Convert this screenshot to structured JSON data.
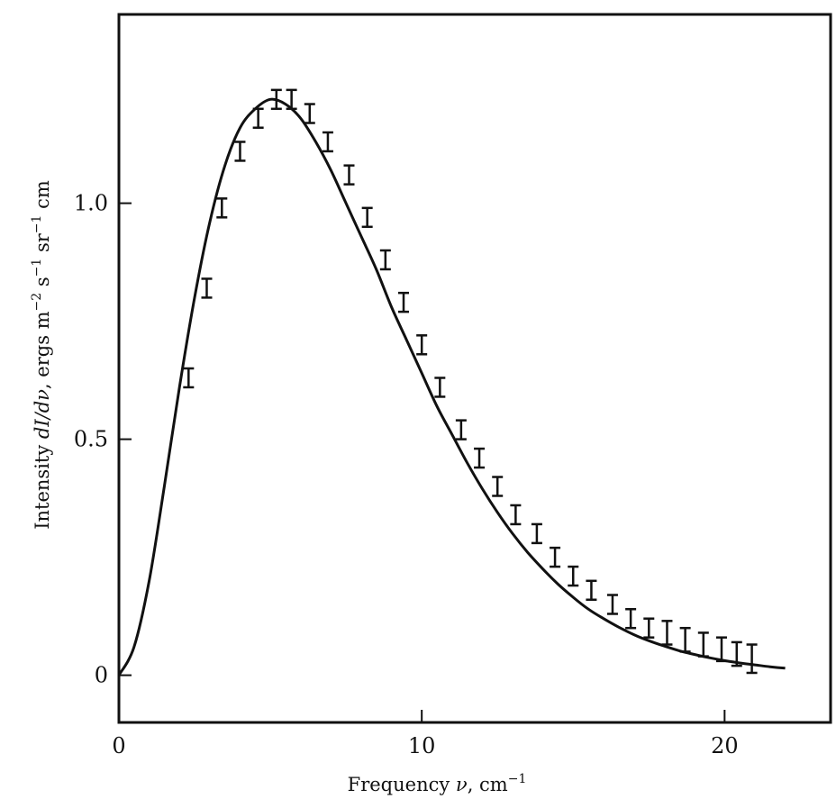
{
  "chart_data": {
    "type": "scatter",
    "xlabel": {
      "prefix": "Frequency ",
      "symbol": "ν",
      "suffix": ", cm",
      "exponent": "−1"
    },
    "ylabel": {
      "prefix": "Intensity ",
      "expr": "dI/dν",
      "middle": ", ergs m",
      "exp1": "−2",
      "s": " s",
      "exp2": "−1",
      "sr": " sr",
      "exp3": "−1",
      "tail": " cm"
    },
    "xlim": [
      0,
      23.5
    ],
    "ylim": [
      -0.1,
      1.4
    ],
    "xticks": [
      0,
      10,
      20
    ],
    "xtick_labels": [
      "0",
      "10",
      "20"
    ],
    "yticks": [
      0,
      0.5,
      1.0
    ],
    "ytick_labels": [
      "0",
      "0.5",
      "1.0"
    ],
    "grid": false,
    "series": [
      {
        "kind": "curve",
        "x": [
          0,
          0.5,
          1,
          1.5,
          2,
          2.5,
          3,
          3.5,
          4,
          4.5,
          5,
          5.5,
          6,
          6.5,
          7,
          7.5,
          8,
          8.5,
          9,
          9.5,
          10,
          10.5,
          11,
          11.5,
          12,
          12.5,
          13,
          13.5,
          14,
          14.5,
          15,
          15.5,
          16,
          16.5,
          17,
          17.5,
          18,
          18.5,
          19,
          19.5,
          20,
          20.5,
          21,
          21.5,
          22
        ],
        "y": [
          0,
          0.06,
          0.2,
          0.4,
          0.61,
          0.8,
          0.96,
          1.08,
          1.16,
          1.2,
          1.22,
          1.21,
          1.18,
          1.13,
          1.07,
          1.0,
          0.93,
          0.86,
          0.78,
          0.71,
          0.64,
          0.57,
          0.51,
          0.45,
          0.395,
          0.345,
          0.3,
          0.26,
          0.225,
          0.193,
          0.165,
          0.14,
          0.12,
          0.102,
          0.086,
          0.073,
          0.062,
          0.052,
          0.044,
          0.037,
          0.031,
          0.026,
          0.022,
          0.018,
          0.015
        ]
      },
      {
        "kind": "error_bars",
        "x": [
          2.3,
          2.9,
          3.4,
          4.0,
          4.6,
          5.2,
          5.7,
          6.3,
          6.9,
          7.6,
          8.2,
          8.8,
          9.4,
          10.0,
          10.6,
          11.3,
          11.9,
          12.5,
          13.1,
          13.8,
          14.4,
          15.0,
          15.6,
          16.3,
          16.9,
          17.5,
          18.1,
          18.7,
          19.3,
          19.9,
          20.4,
          20.9
        ],
        "y": [
          0.63,
          0.82,
          0.99,
          1.11,
          1.18,
          1.22,
          1.22,
          1.19,
          1.13,
          1.06,
          0.97,
          0.88,
          0.79,
          0.7,
          0.61,
          0.52,
          0.46,
          0.4,
          0.34,
          0.3,
          0.25,
          0.21,
          0.18,
          0.15,
          0.12,
          0.1,
          0.09,
          0.075,
          0.065,
          0.055,
          0.045,
          0.035
        ],
        "err": [
          0.02,
          0.02,
          0.02,
          0.02,
          0.02,
          0.02,
          0.02,
          0.02,
          0.02,
          0.02,
          0.02,
          0.02,
          0.02,
          0.02,
          0.02,
          0.02,
          0.02,
          0.02,
          0.02,
          0.02,
          0.02,
          0.02,
          0.02,
          0.02,
          0.02,
          0.02,
          0.025,
          0.025,
          0.025,
          0.025,
          0.025,
          0.03
        ]
      }
    ]
  }
}
